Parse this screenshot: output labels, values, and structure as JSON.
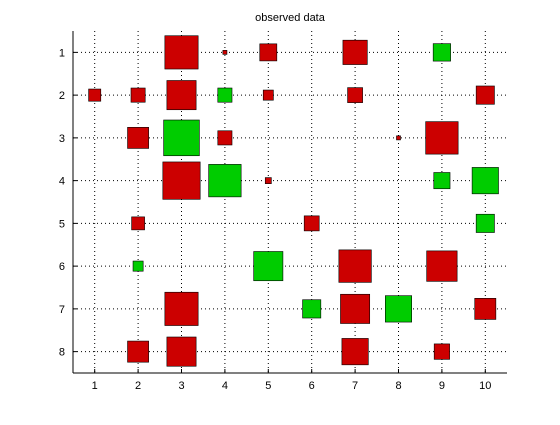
{
  "chart_data": {
    "type": "hinton",
    "title": "observed data",
    "xlabel": "",
    "ylabel": "",
    "x_ticks": [
      1,
      2,
      3,
      4,
      5,
      6,
      7,
      8,
      9,
      10
    ],
    "y_ticks": [
      1,
      2,
      3,
      4,
      5,
      6,
      7,
      8
    ],
    "xlim": [
      0.5,
      10.5
    ],
    "ylim": [
      0.5,
      8.5
    ],
    "y_direction": "reversed",
    "grid": true,
    "grid_style": "dotted",
    "value_encoding": "box side length proportional to magnitude; red = positive, green = negative",
    "colors": {
      "positive": "#cc0000",
      "negative": "#00cc00",
      "axes": "#000000",
      "grid": "#000000",
      "background": "#ffffff"
    },
    "cells": [
      {
        "row": 1,
        "col": 3,
        "value": 0.82
      },
      {
        "row": 1,
        "col": 4,
        "value": 0.1
      },
      {
        "row": 1,
        "col": 5,
        "value": 0.42
      },
      {
        "row": 1,
        "col": 7,
        "value": 0.6
      },
      {
        "row": 1,
        "col": 9,
        "value": -0.43
      },
      {
        "row": 2,
        "col": 1,
        "value": 0.3
      },
      {
        "row": 2,
        "col": 2,
        "value": 0.35
      },
      {
        "row": 2,
        "col": 3,
        "value": 0.72
      },
      {
        "row": 2,
        "col": 4,
        "value": -0.35
      },
      {
        "row": 2,
        "col": 5,
        "value": 0.25
      },
      {
        "row": 2,
        "col": 7,
        "value": 0.37
      },
      {
        "row": 2,
        "col": 10,
        "value": 0.45
      },
      {
        "row": 3,
        "col": 2,
        "value": 0.52
      },
      {
        "row": 3,
        "col": 3,
        "value": -0.88
      },
      {
        "row": 3,
        "col": 4,
        "value": 0.35
      },
      {
        "row": 3,
        "col": 8,
        "value": 0.1
      },
      {
        "row": 3,
        "col": 9,
        "value": 0.8
      },
      {
        "row": 4,
        "col": 3,
        "value": 0.92
      },
      {
        "row": 4,
        "col": 4,
        "value": -0.8
      },
      {
        "row": 4,
        "col": 5,
        "value": 0.15
      },
      {
        "row": 4,
        "col": 9,
        "value": -0.4
      },
      {
        "row": 4,
        "col": 10,
        "value": -0.65
      },
      {
        "row": 5,
        "col": 2,
        "value": 0.32
      },
      {
        "row": 5,
        "col": 6,
        "value": 0.37
      },
      {
        "row": 5,
        "col": 10,
        "value": -0.45
      },
      {
        "row": 6,
        "col": 2,
        "value": -0.25
      },
      {
        "row": 6,
        "col": 5,
        "value": -0.72
      },
      {
        "row": 6,
        "col": 7,
        "value": 0.8
      },
      {
        "row": 6,
        "col": 9,
        "value": 0.75
      },
      {
        "row": 7,
        "col": 3,
        "value": 0.82
      },
      {
        "row": 7,
        "col": 6,
        "value": -0.45
      },
      {
        "row": 7,
        "col": 7,
        "value": 0.72
      },
      {
        "row": 7,
        "col": 8,
        "value": -0.65
      },
      {
        "row": 7,
        "col": 10,
        "value": 0.52
      },
      {
        "row": 8,
        "col": 2,
        "value": 0.52
      },
      {
        "row": 8,
        "col": 3,
        "value": 0.72
      },
      {
        "row": 8,
        "col": 7,
        "value": 0.65
      },
      {
        "row": 8,
        "col": 9,
        "value": 0.38
      }
    ]
  }
}
